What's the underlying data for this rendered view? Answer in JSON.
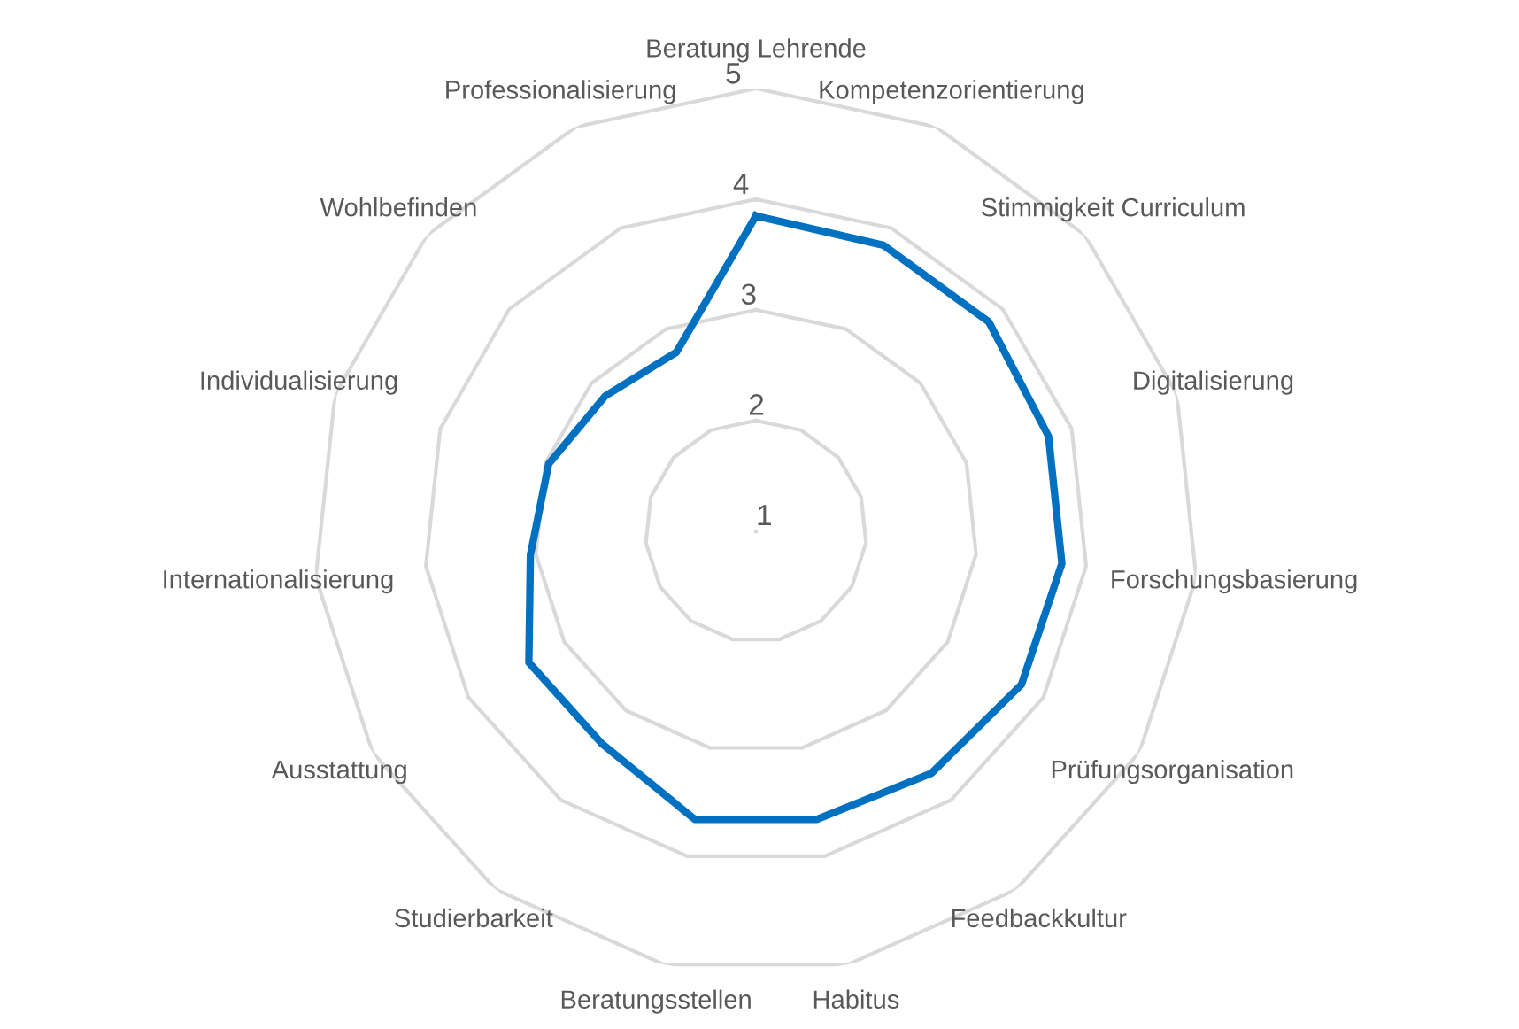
{
  "chart_data": {
    "type": "radar",
    "categories": [
      "Beratung Lehrende",
      "Kompetenzorientierung",
      "Stimmigkeit Curriculum",
      "Digitalisierung",
      "Forschungsbasierung",
      "Prüfungsorganisation",
      "Feedbackkultur",
      "Habitus",
      "Beratungsstellen",
      "Studierbarkeit",
      "Ausstattung",
      "Internationalisierung",
      "Individualisierung",
      "Wohlbefinden",
      "Professionalisierung"
    ],
    "series": [
      {
        "color": "#0070c0",
        "values": [
          3.85,
          3.83,
          3.83,
          3.78,
          3.78,
          3.77,
          3.7,
          3.66,
          3.66,
          3.37,
          3.37,
          3.05,
          2.97,
          2.83,
          2.77
        ]
      }
    ],
    "ylim": [
      1,
      5
    ],
    "yticks": [
      1,
      2,
      3,
      4,
      5
    ],
    "grid": true,
    "marker": "none",
    "line_style": "solid"
  }
}
